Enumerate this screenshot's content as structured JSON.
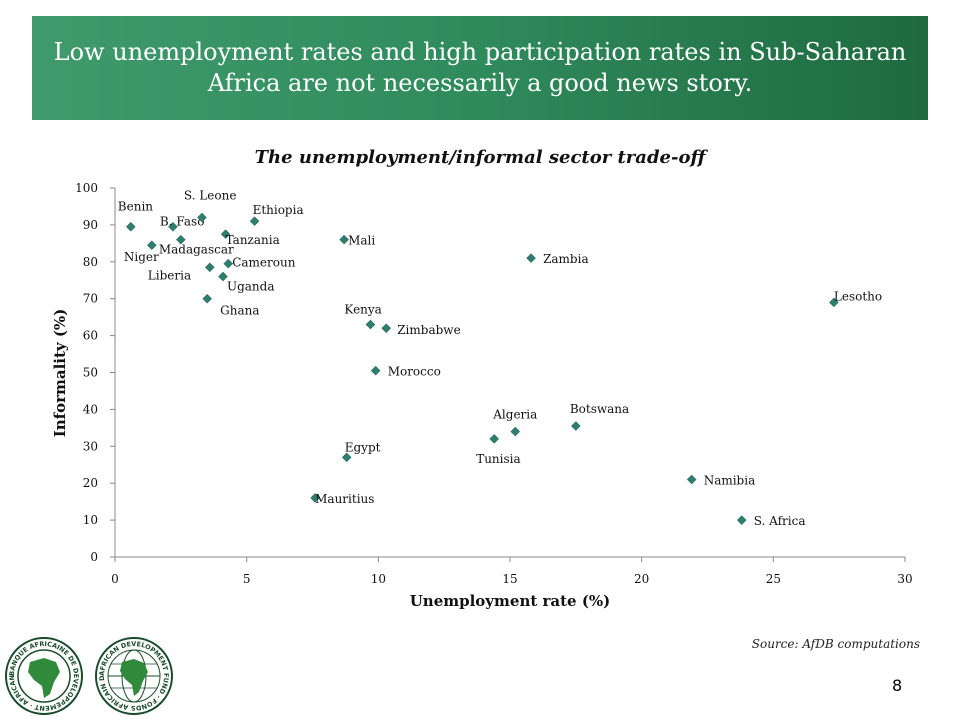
{
  "banner": {
    "title": "Low unemployment rates and high participation rates in Sub-Saharan Africa are not necessarily a good news story."
  },
  "source": "Source: AfDB computations",
  "page_number": "8",
  "colors": {
    "banner": "#2f8a5c",
    "marker": "#2e7d6e"
  },
  "logos": {
    "afdb_bank": "BANQUE AFRICAINE DE DEVELOPPEMENT · AFRICAN DEVELOPMENT BANK",
    "afdb_fund": "AFRICAN DEVELOPMENT FUND · FONDS AFRICAIN DE DEVELOPPEMENT"
  },
  "chart_data": {
    "type": "scatter",
    "title": "The unemployment/informal sector trade-off",
    "xlabel": "Unemployment rate (%)",
    "ylabel": "Informality (%)",
    "xlim": [
      0,
      30
    ],
    "ylim": [
      0,
      100
    ],
    "xticks": [
      "0",
      "5",
      "10",
      "15",
      "20",
      "25",
      "30"
    ],
    "yticks": [
      "0",
      "10",
      "20",
      "30",
      "40",
      "50",
      "60",
      "70",
      "80",
      "90",
      "100"
    ],
    "grid": false,
    "points": [
      {
        "label": "Benin",
        "x": 0.6,
        "y": 89.5
      },
      {
        "label": "Niger",
        "x": 1.4,
        "y": 84.5
      },
      {
        "label": "B. Faso",
        "x": 2.2,
        "y": 89.5
      },
      {
        "label": "Madagascar",
        "x": 2.5,
        "y": 86.0
      },
      {
        "label": "S. Leone",
        "x": 3.3,
        "y": 92.0
      },
      {
        "label": "Liberia",
        "x": 3.6,
        "y": 78.5
      },
      {
        "label": "Ghana",
        "x": 3.5,
        "y": 70.0
      },
      {
        "label": "Tanzania",
        "x": 4.2,
        "y": 87.5
      },
      {
        "label": "Uganda",
        "x": 4.1,
        "y": 76.0
      },
      {
        "label": "Cameroun",
        "x": 4.3,
        "y": 79.5
      },
      {
        "label": "Ethiopia",
        "x": 5.3,
        "y": 91.0
      },
      {
        "label": "Mauritius",
        "x": 7.6,
        "y": 16.0
      },
      {
        "label": "Egypt",
        "x": 8.8,
        "y": 27.0
      },
      {
        "label": "Mali",
        "x": 8.7,
        "y": 86.0
      },
      {
        "label": "Kenya",
        "x": 9.7,
        "y": 63.0
      },
      {
        "label": "Morocco",
        "x": 9.9,
        "y": 50.5
      },
      {
        "label": "Zimbabwe",
        "x": 10.3,
        "y": 62.0
      },
      {
        "label": "Tunisia",
        "x": 14.4,
        "y": 32.0
      },
      {
        "label": "Algeria",
        "x": 15.2,
        "y": 34.0
      },
      {
        "label": "Zambia",
        "x": 15.8,
        "y": 81.0
      },
      {
        "label": "Botswana",
        "x": 17.5,
        "y": 35.5
      },
      {
        "label": "Namibia",
        "x": 21.9,
        "y": 21.0
      },
      {
        "label": "S. Africa",
        "x": 23.8,
        "y": 10.0
      },
      {
        "label": "Lesotho",
        "x": 27.3,
        "y": 69.0
      }
    ]
  }
}
